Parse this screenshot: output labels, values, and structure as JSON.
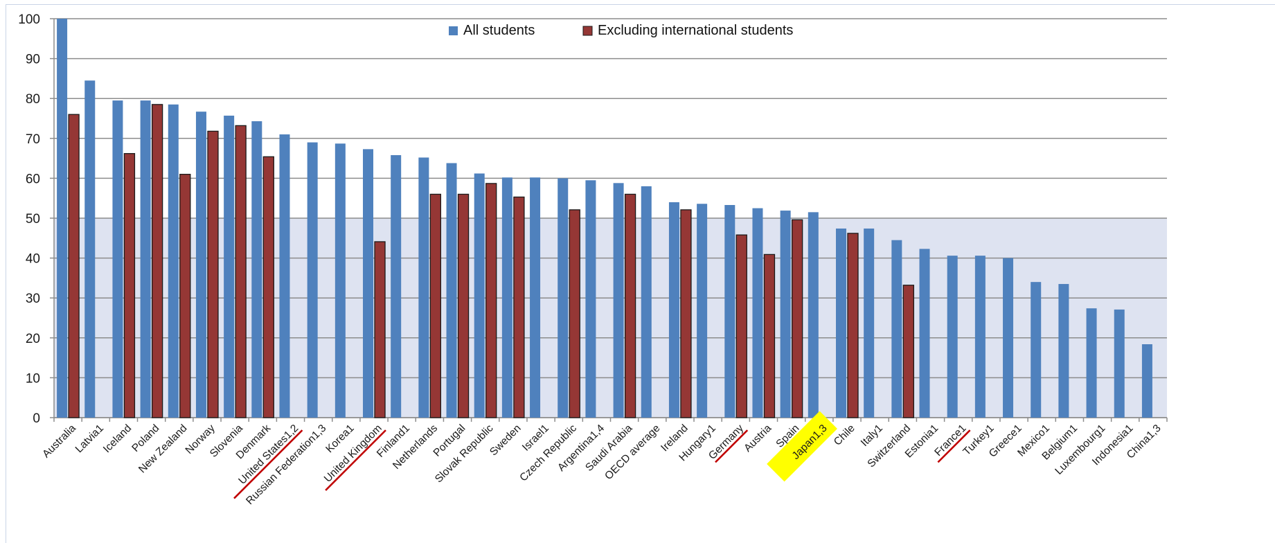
{
  "chart_data": {
    "type": "bar",
    "title": "",
    "xlabel": "",
    "ylabel": "",
    "ylim": [
      0,
      100
    ],
    "yticks": [
      "0",
      "10",
      "20",
      "30",
      "40",
      "50",
      "60",
      "70",
      "80",
      "90",
      "100"
    ],
    "grid": true,
    "legend_position": "top-center",
    "shaded_band": [
      0,
      50
    ],
    "categories": [
      "Australia",
      "Latvia1",
      "Iceland",
      "Poland",
      "New Zealand",
      "Norway",
      "Slovenia",
      "Denmark",
      "United States1,2",
      "Russian Federation1,3",
      "Korea1",
      "United Kingdom",
      "Finland1",
      "Netherlands",
      "Portugal",
      "Slovak Republic",
      "Sweden",
      "Israel1",
      "Czech Republic",
      "Argentina1,4",
      "Saudi Arabia",
      "OECD average",
      "Ireland",
      "Hungary1",
      "Germany",
      "Austria",
      "Spain",
      "Japan1,3",
      "Chile",
      "Italy1",
      "Switzerland",
      "Estonia1",
      "France1",
      "Turkey1",
      "Greece1",
      "Mexico1",
      "Belgium1",
      "Luxembourg1",
      "Indonesia1",
      "China1,3"
    ],
    "series": [
      {
        "name": "All students",
        "color": "#4f81bd",
        "values": [
          100,
          84.5,
          79.5,
          79.5,
          78.5,
          76.7,
          75.7,
          74.3,
          71,
          69,
          68.7,
          67.3,
          65.8,
          65.2,
          63.8,
          61.2,
          60.2,
          60.2,
          60,
          59.5,
          58.8,
          58,
          54,
          53.6,
          53.3,
          52.5,
          51.9,
          51.5,
          47.4,
          47.4,
          44.5,
          42.3,
          40.6,
          40.6,
          40,
          34,
          33.5,
          27.4,
          27.1,
          18.4
        ]
      },
      {
        "name": "Excluding international students",
        "color": "#953735",
        "values": [
          76,
          null,
          66.2,
          78.5,
          61,
          71.8,
          73.2,
          65.4,
          null,
          null,
          null,
          44.1,
          null,
          56,
          56,
          58.7,
          55.3,
          null,
          52.1,
          null,
          56,
          null,
          52.1,
          null,
          45.8,
          40.9,
          49.6,
          null,
          46.2,
          null,
          33.2,
          null,
          null,
          null,
          null,
          null,
          null,
          null,
          null,
          null
        ]
      }
    ],
    "annotations": {
      "underlined_red": [
        "United States1,2",
        "United Kingdom",
        "Germany",
        "France1"
      ],
      "highlighted_yellow": [
        "Japan1,3"
      ],
      "underline_color": "#c00000",
      "highlight_color": "#ffff00"
    }
  }
}
